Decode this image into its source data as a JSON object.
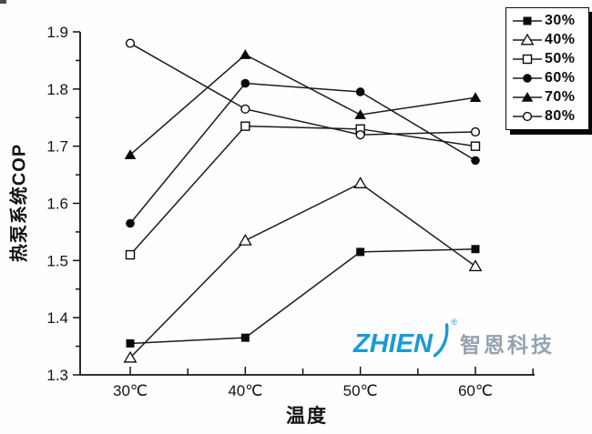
{
  "page": {
    "background": "#fefefe"
  },
  "chart_data": {
    "type": "line",
    "title": "",
    "xlabel": "温度",
    "ylabel": "热泵系统COP",
    "x_categories": [
      "30℃",
      "40℃",
      "50℃",
      "60℃"
    ],
    "x_values": [
      30,
      40,
      50,
      60
    ],
    "ylim": [
      1.3,
      1.9
    ],
    "yticks": [
      1.3,
      1.4,
      1.5,
      1.6,
      1.7,
      1.8,
      1.9
    ],
    "grid": false,
    "legend_position": "top-right",
    "line_color": "#1b1b1b",
    "axis_color": "#141414",
    "series": [
      {
        "name": "30%",
        "marker": "square-filled",
        "values": [
          1.355,
          1.365,
          1.515,
          1.52
        ]
      },
      {
        "name": "40%",
        "marker": "triangle-open",
        "values": [
          1.33,
          1.535,
          1.635,
          1.49
        ]
      },
      {
        "name": "50%",
        "marker": "square-open",
        "values": [
          1.51,
          1.735,
          1.73,
          1.7
        ]
      },
      {
        "name": "60%",
        "marker": "circle-filled",
        "values": [
          1.565,
          1.81,
          1.795,
          1.675
        ]
      },
      {
        "name": "70%",
        "marker": "triangle-filled",
        "values": [
          1.685,
          1.86,
          1.755,
          1.785
        ]
      },
      {
        "name": "80%",
        "marker": "circle-open",
        "values": [
          1.88,
          1.765,
          1.72,
          1.725
        ]
      }
    ]
  },
  "watermark": {
    "brand": "ZHIEN",
    "reg_mark": "®",
    "cn_text": "智恩科技",
    "brand_color": "#1b9ad7",
    "cn_color": "#94a3af"
  }
}
